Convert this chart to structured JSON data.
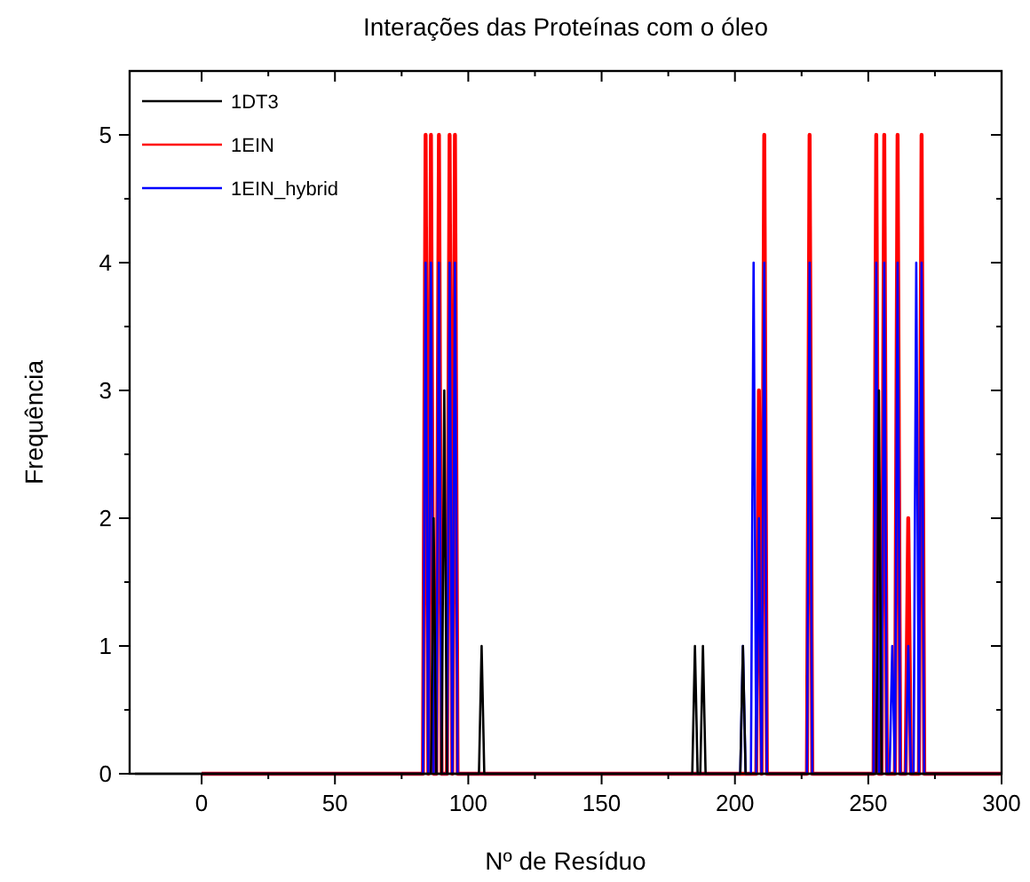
{
  "chart_data": {
    "type": "line",
    "title": "Interações das Proteínas com o óleo",
    "xlabel": "Nº de Resíduo",
    "ylabel": "Frequência",
    "xlim": [
      -27,
      300
    ],
    "xticks": [
      0,
      {
        "value": 25,
        "label": null
      },
      50,
      {
        "value": 75,
        "label": null
      },
      100,
      {
        "value": 125,
        "label": null
      },
      150,
      {
        "value": 175,
        "label": null
      },
      200,
      {
        "value": 225,
        "label": null
      },
      250,
      {
        "value": 275,
        "label": null
      },
      300
    ],
    "ylim": [
      0,
      5.5
    ],
    "yticks": [
      0,
      {
        "value": 0.5,
        "label": null
      },
      1,
      {
        "value": 1.5,
        "label": null
      },
      2,
      {
        "value": 2.5,
        "label": null
      },
      3,
      {
        "value": 3.5,
        "label": null
      },
      4,
      {
        "value": 4.5,
        "label": null
      },
      5
    ],
    "legend": "top left",
    "grid": false,
    "marker": "none",
    "line_style": "solid",
    "series": [
      {
        "name": "1DT3",
        "color": "#000000",
        "x": [
          -25,
          86,
          87,
          88,
          90,
          91,
          92,
          104,
          105,
          106,
          184,
          185,
          186,
          187,
          188,
          189,
          202,
          203,
          204,
          253,
          254,
          255,
          300
        ],
        "values": [
          0,
          0,
          2,
          0,
          0,
          3,
          0,
          0,
          1,
          0,
          0,
          1,
          0,
          0,
          1,
          0,
          0,
          1,
          0,
          0,
          3,
          0,
          0
        ]
      },
      {
        "name": "1EIN",
        "color": "#ff0000",
        "x": [
          0,
          83,
          84,
          85,
          86,
          87,
          88,
          89,
          90,
          92,
          93,
          94,
          95,
          96,
          208,
          209,
          210,
          211,
          212,
          227,
          228,
          229,
          252,
          253,
          254,
          255,
          256,
          257,
          260,
          261,
          262,
          264,
          265,
          266,
          269,
          270,
          271,
          300
        ],
        "values": [
          0,
          0,
          5,
          0,
          5,
          0,
          0,
          5,
          0,
          0,
          5,
          0,
          5,
          0,
          0,
          3,
          0,
          5,
          0,
          0,
          5,
          0,
          0,
          5,
          0,
          0,
          5,
          0,
          0,
          5,
          0,
          0,
          2,
          0,
          0,
          5,
          0,
          0
        ]
      },
      {
        "name": "1EIN_hybrid",
        "color": "#0000ff",
        "x": [
          0,
          83,
          84,
          85,
          86,
          87,
          88,
          89,
          90,
          92,
          93,
          94,
          95,
          96,
          202,
          203,
          204,
          206,
          207,
          208,
          209,
          210,
          211,
          212,
          227,
          228,
          229,
          252,
          253,
          254,
          255,
          256,
          257,
          258,
          259,
          260,
          261,
          262,
          264,
          265,
          266,
          267,
          268,
          269,
          270,
          271,
          300
        ],
        "values": [
          0,
          0,
          4,
          0,
          4,
          0,
          0,
          4,
          0,
          0,
          4,
          0,
          4,
          0,
          0,
          1,
          0,
          0,
          4,
          0,
          2,
          0,
          4,
          0,
          0,
          4,
          0,
          0,
          4,
          0,
          0,
          4,
          0,
          0,
          1,
          0,
          4,
          0,
          0,
          1,
          0,
          0,
          4,
          0,
          4,
          0,
          0
        ]
      }
    ]
  }
}
